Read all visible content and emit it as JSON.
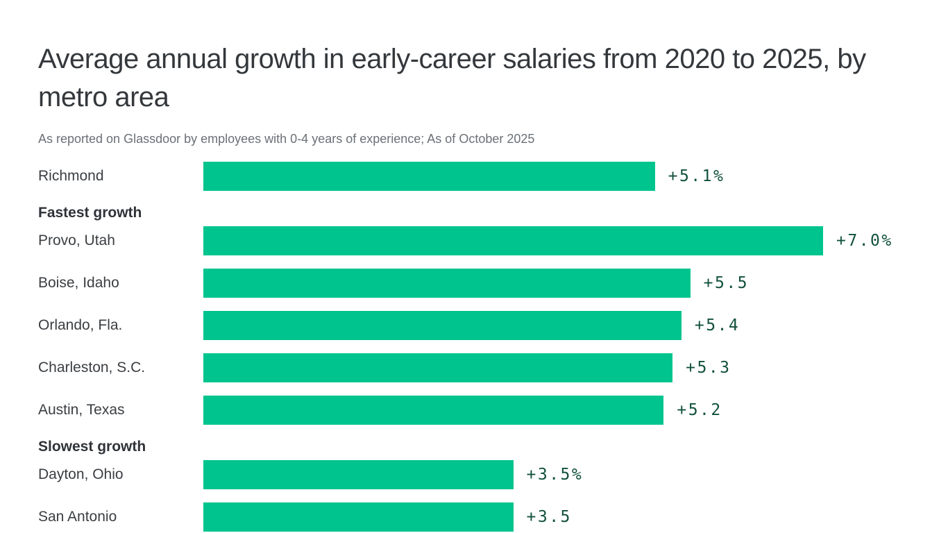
{
  "header": {
    "title": "Average annual growth in early-career salaries from 2020 to 2025, by metro area",
    "subtitle": "As reported on Glassdoor by employees with 0-4 years of experience; As of October 2025"
  },
  "colors": {
    "bar": "#00C48E",
    "value_text": "#11503C",
    "title_text": "#34383C",
    "subtitle_text": "#6A7076"
  },
  "chart_data": {
    "type": "bar",
    "orientation": "horizontal",
    "title": "Average annual growth in early-career salaries from 2020 to 2025, by metro area",
    "subtitle": "As reported on Glassdoor by employees with 0-4 years of experience; As of October 2025",
    "unit": "%",
    "xlim": [
      0,
      7.0
    ],
    "grid": false,
    "legend": false,
    "section_headers": [
      "Fastest growth",
      "Slowest growth"
    ],
    "rows": [
      {
        "label": "Richmond",
        "value": 5.1,
        "value_label": "+5.1%"
      },
      {
        "label": "Provo, Utah",
        "value": 7.0,
        "value_label": "+7.0%",
        "section": "Fastest growth"
      },
      {
        "label": "Boise, Idaho",
        "value": 5.5,
        "value_label": "+5.5"
      },
      {
        "label": "Orlando, Fla.",
        "value": 5.4,
        "value_label": "+5.4"
      },
      {
        "label": "Charleston, S.C.",
        "value": 5.3,
        "value_label": "+5.3"
      },
      {
        "label": "Austin, Texas",
        "value": 5.2,
        "value_label": "+5.2"
      },
      {
        "label": "Dayton, Ohio",
        "value": 3.5,
        "value_label": "+3.5%",
        "section": "Slowest growth"
      },
      {
        "label": "San Antonio",
        "value": 3.5,
        "value_label": "+3.5",
        "clipped_by_viewport": true
      }
    ]
  }
}
